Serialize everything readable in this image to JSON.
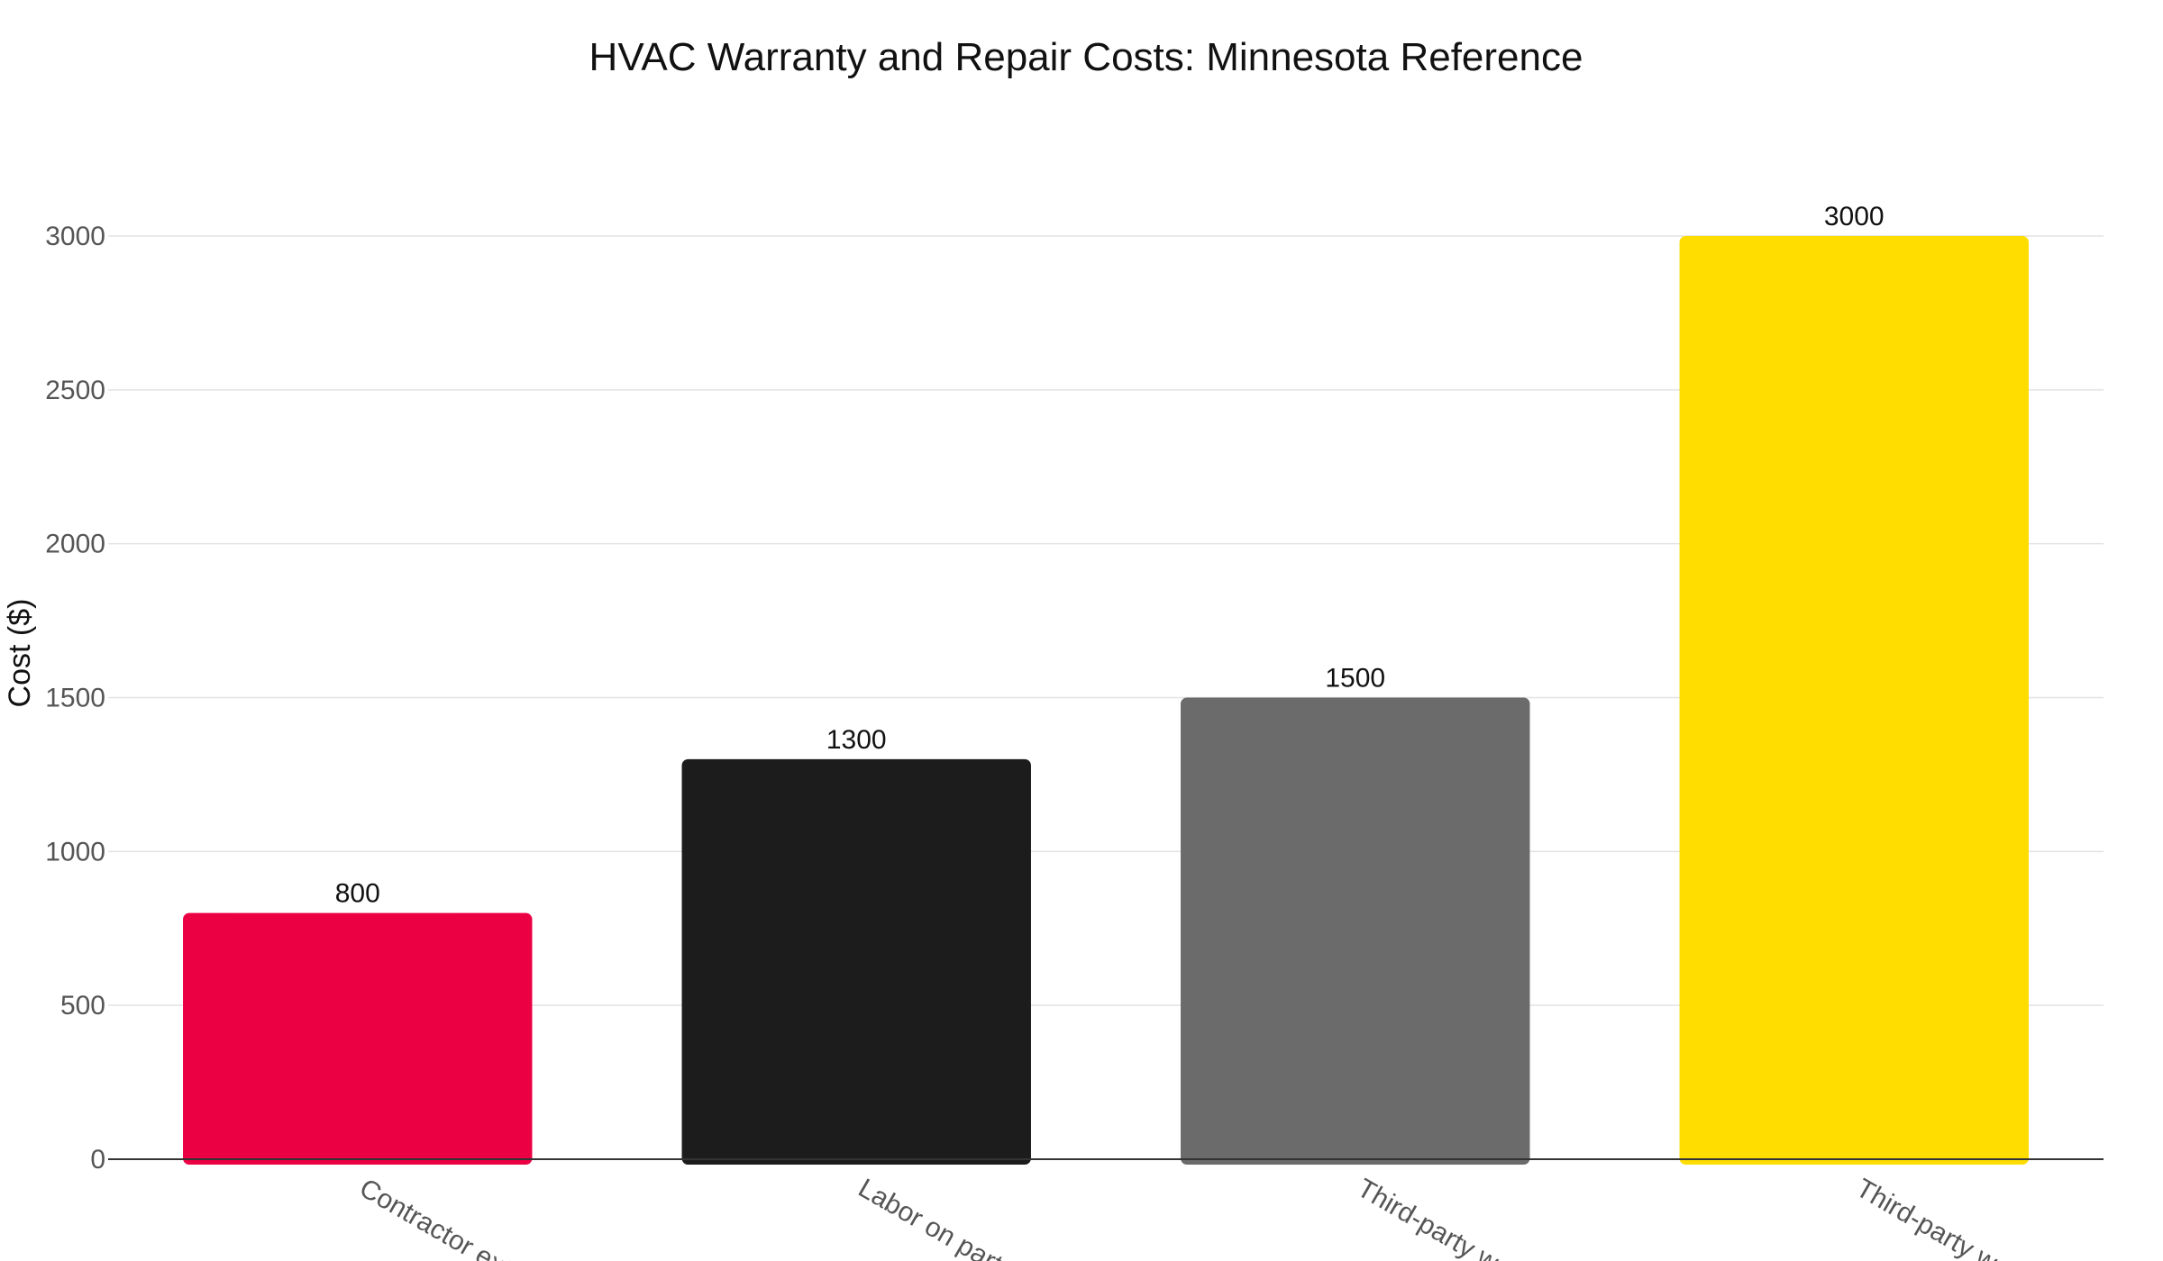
{
  "chart_data": {
    "type": "bar",
    "title": "HVAC Warranty and Repair Costs: Minnesota Reference",
    "xlabel": "",
    "ylabel": "Cost ($)",
    "ylim": [
      0,
      3000
    ],
    "yticks": [
      0,
      500,
      1000,
      1500,
      2000,
      2500,
      3000
    ],
    "grid": true,
    "categories": [
      "Contractor exte",
      "Labor on parts",
      "Third-party war",
      "Third-party war"
    ],
    "values": [
      800,
      1300,
      1500,
      3000
    ],
    "data_labels": [
      "800",
      "1300",
      "1500",
      "3000"
    ],
    "colors": [
      "#ec0044",
      "#1c1c1c",
      "#6b6b6b",
      "#ffdd00"
    ]
  }
}
